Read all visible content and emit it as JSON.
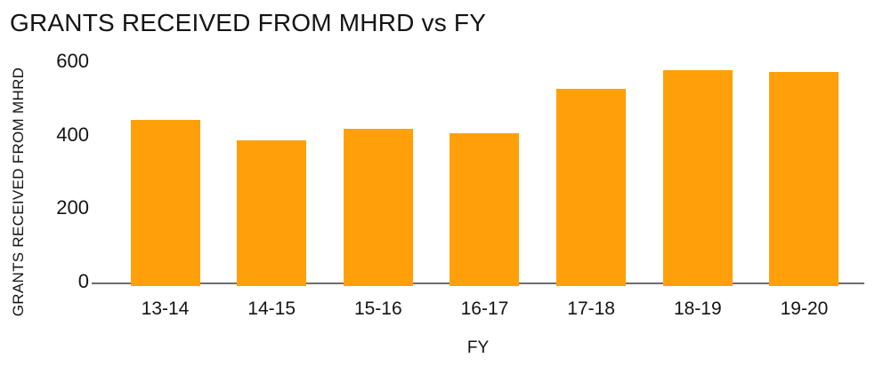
{
  "page": {
    "title": "GRANTS RECEIVED FROM MHRD vs FY"
  },
  "chart_data": {
    "type": "bar",
    "title": "GRANTS RECEIVED FROM MHRD vs FY",
    "categories": [
      "13-14",
      "14-15",
      "15-16",
      "16-17",
      "17-18",
      "18-19",
      "19-20"
    ],
    "values": [
      445,
      390,
      420,
      410,
      530,
      580,
      575
    ],
    "xlabel": "FY",
    "ylabel": "GRANTS RECEIVED FROM MHRD",
    "ylim": [
      0,
      600
    ],
    "yticks": [
      0,
      200,
      400,
      600
    ],
    "series_name": "Grants received from MHRD",
    "bar_color": "#FFA00A",
    "axis_line_color": "#6E6E6E",
    "text_color": "#141414",
    "background": "#FFFFFF",
    "grid": false,
    "legend": false
  }
}
